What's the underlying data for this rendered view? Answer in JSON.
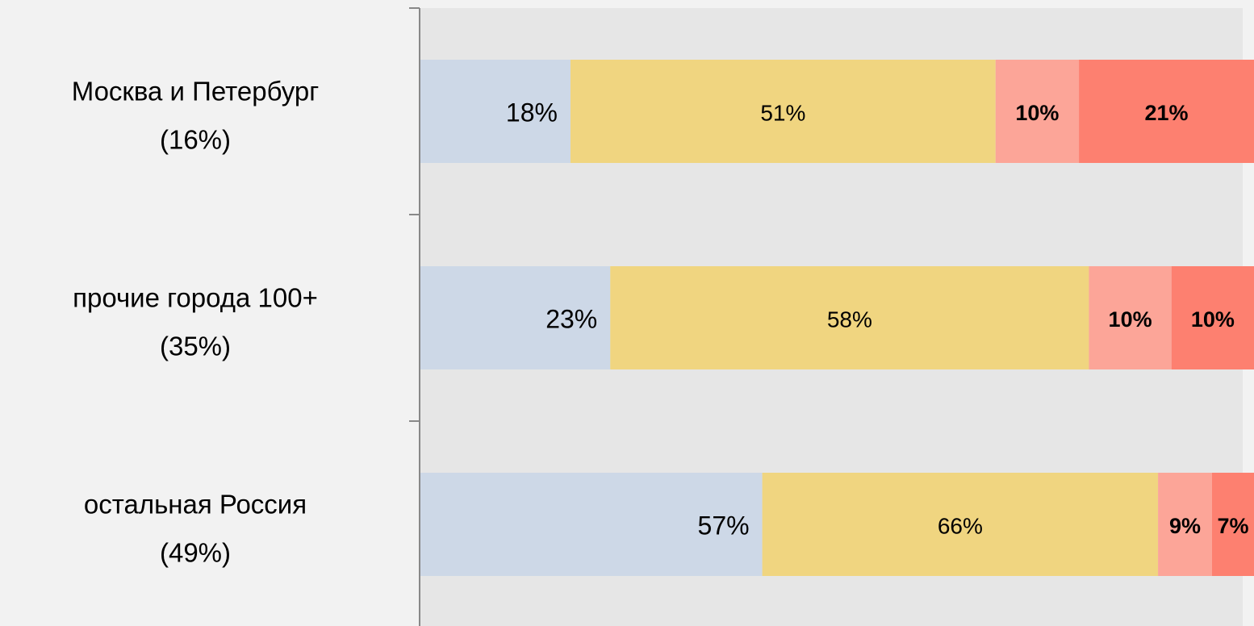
{
  "chart_data": {
    "type": "bar",
    "orientation": "horizontal",
    "stacking": "percent",
    "categories": [
      [
        "Москва и Петербург",
        "(16%)"
      ],
      [
        "прочие города 100+",
        "(35%)"
      ],
      [
        "остальная Россия",
        "(49%)"
      ]
    ],
    "series": [
      {
        "color": "#cdd8e7",
        "bold": false,
        "values": [
          18,
          23,
          57
        ],
        "value_labels": [
          "18%",
          "23%",
          "57%"
        ]
      },
      {
        "color": "#f0d580",
        "bold": false,
        "values": [
          51,
          58,
          66
        ],
        "value_labels": [
          "51%",
          "58%",
          "66%"
        ]
      },
      {
        "color": "#fca598",
        "bold": true,
        "values": [
          10,
          10,
          9
        ],
        "value_labels": [
          "10%",
          "10%",
          "9%"
        ]
      },
      {
        "color": "#fd8070",
        "bold": true,
        "values": [
          21,
          10,
          7
        ],
        "value_labels": [
          "21%",
          "10%",
          "7%"
        ]
      }
    ]
  }
}
